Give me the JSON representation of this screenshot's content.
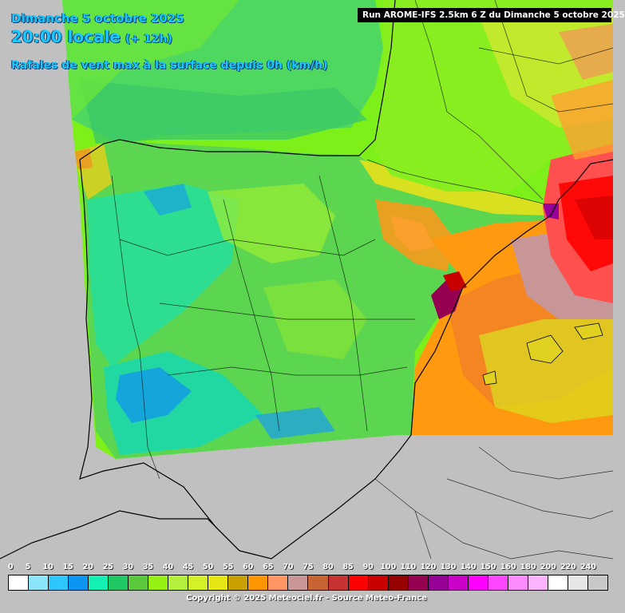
{
  "header": {
    "date_line": "Dimanche 5 octobre 2025",
    "time_line": "20:00 locale",
    "lead_time": "(+ 12h)",
    "parameter": "Rafales de vent max à la surface depuis 0h (km/h)"
  },
  "run_info": "Run AROME-IFS 2.5km 6 Z du Dimanche 5 octobre 2025",
  "colors": {
    "background": "#c0c0c0",
    "title": "#18c8ff",
    "land": "#5ed84a",
    "sea": "#7cf018"
  },
  "scale": {
    "unit": "km/h",
    "labels": [
      "0",
      "5",
      "10",
      "15",
      "20",
      "25",
      "30",
      "35",
      "40",
      "45",
      "50",
      "55",
      "60",
      "65",
      "70",
      "75",
      "80",
      "85",
      "90",
      "100",
      "110",
      "120",
      "130",
      "140",
      "150",
      "160",
      "180",
      "200",
      "220",
      "240"
    ],
    "colors": [
      "#ffffff",
      "#8ae6f8",
      "#2ec6ff",
      "#0a96f0",
      "#14f0b4",
      "#20c864",
      "#5ac83c",
      "#96f014",
      "#b4f03c",
      "#d4f028",
      "#e6e614",
      "#c8a000",
      "#ff9600",
      "#ff9664",
      "#c89696",
      "#c86432",
      "#c83232",
      "#ff0000",
      "#c80000",
      "#960000",
      "#960050",
      "#960096",
      "#c800c8",
      "#ff00ff",
      "#ff46ff",
      "#ff8cff",
      "#ffb4ff",
      "#ffffff",
      "#e6e6e6",
      "#c8c8c8"
    ]
  },
  "credit": "Copyright © 2025 Meteociel.fr - Source Meteo-France"
}
